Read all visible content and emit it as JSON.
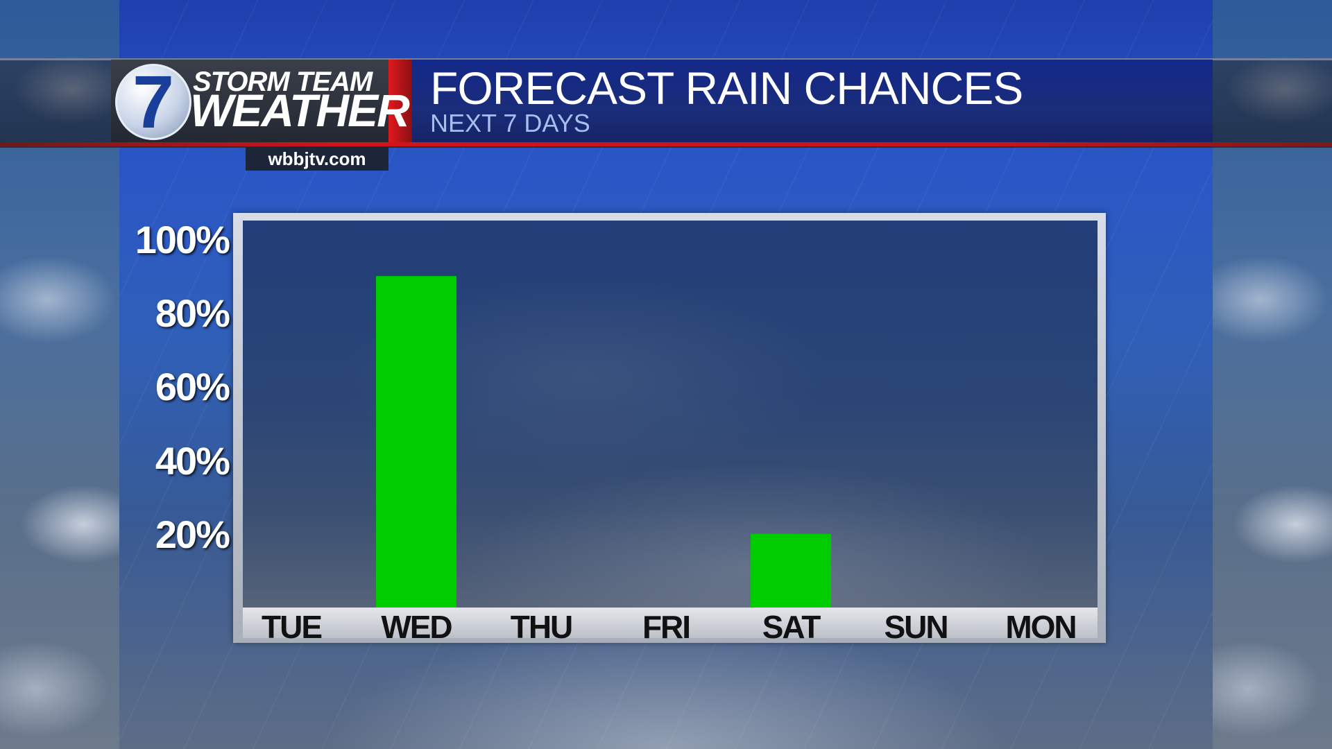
{
  "header": {
    "logo_number": "7",
    "logo_line1": "STORM TEAM",
    "logo_line2": "WEATHER",
    "site": "wbbjtv.com",
    "title": "FORECAST RAIN CHANCES",
    "subtitle": "NEXT 7 DAYS"
  },
  "colors": {
    "bar": "#00cc00",
    "accent_red": "#d0141a",
    "title_blue": "#14288a"
  },
  "chart_data": {
    "type": "bar",
    "title": "FORECAST RAIN CHANCES",
    "subtitle": "NEXT 7 DAYS",
    "categories": [
      "TUE",
      "WED",
      "THU",
      "FRI",
      "SAT",
      "SUN",
      "MON"
    ],
    "values": [
      0,
      90,
      0,
      0,
      20,
      0,
      0
    ],
    "ylim": [
      0,
      100
    ],
    "yticks": [
      "20%",
      "40%",
      "60%",
      "80%",
      "100%"
    ],
    "ytick_values": [
      20,
      40,
      60,
      80,
      100
    ],
    "grid": false,
    "legend": "none"
  }
}
